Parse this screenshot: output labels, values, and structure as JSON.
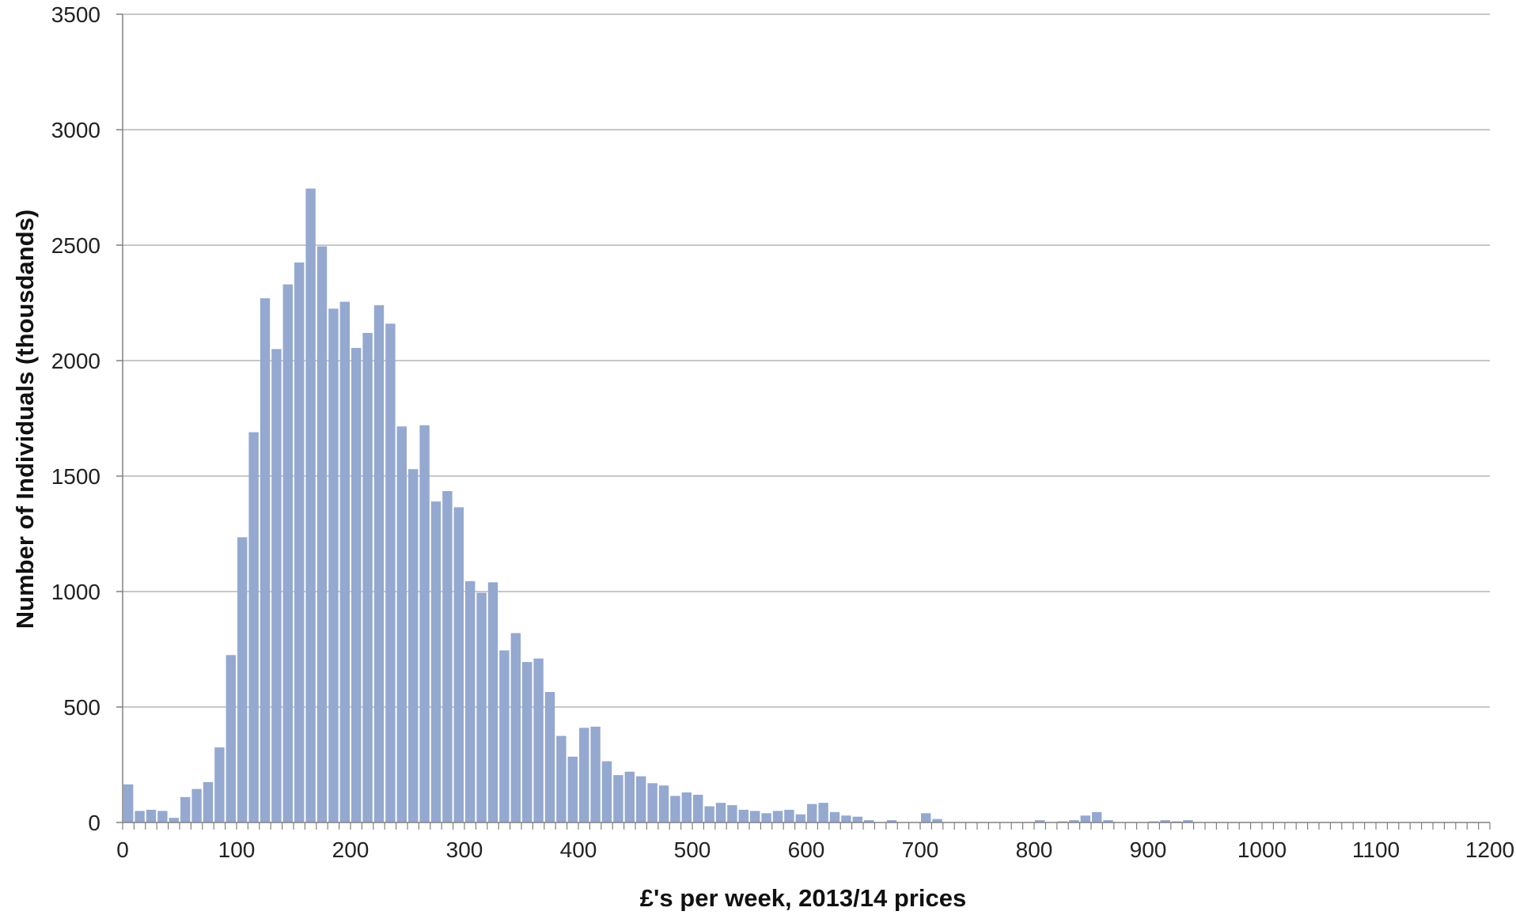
{
  "chart_data": {
    "type": "bar",
    "title": "",
    "xlabel": "£'s per week, 2013/14 prices",
    "ylabel": "Number of Individuals (thousdands)",
    "bin_width": 10,
    "xlim": [
      0,
      1200
    ],
    "ylim": [
      0,
      3500
    ],
    "x_ticks": [
      0,
      100,
      200,
      300,
      400,
      500,
      600,
      700,
      800,
      900,
      1000,
      1100,
      1200
    ],
    "y_ticks": [
      0,
      500,
      1000,
      1500,
      2000,
      2500,
      3000,
      3500
    ],
    "grid": true,
    "bar_color": "#94a8d0",
    "gridline_color": "#a6a6a6",
    "axis_color": "#808080",
    "x": [
      0,
      10,
      20,
      30,
      40,
      50,
      60,
      70,
      80,
      90,
      100,
      110,
      120,
      130,
      140,
      150,
      160,
      170,
      180,
      190,
      200,
      210,
      220,
      230,
      240,
      250,
      260,
      270,
      280,
      290,
      300,
      310,
      320,
      330,
      340,
      350,
      360,
      370,
      380,
      390,
      400,
      410,
      420,
      430,
      440,
      450,
      460,
      470,
      480,
      490,
      500,
      510,
      520,
      530,
      540,
      550,
      560,
      570,
      580,
      590,
      600,
      610,
      620,
      630,
      640,
      650,
      660,
      670,
      680,
      690,
      700,
      710,
      720,
      730,
      740,
      750,
      760,
      770,
      780,
      790,
      800,
      810,
      820,
      830,
      840,
      850,
      860,
      870,
      880,
      890,
      900,
      910,
      920,
      930,
      940,
      950,
      960,
      970,
      980,
      990,
      1000,
      1010,
      1020,
      1030,
      1040,
      1050,
      1060,
      1070,
      1080,
      1090,
      1100,
      1110,
      1120,
      1130,
      1140,
      1150,
      1160,
      1170,
      1180,
      1190
    ],
    "values": [
      165,
      50,
      55,
      50,
      20,
      110,
      145,
      175,
      325,
      725,
      1235,
      1690,
      2270,
      2050,
      2330,
      2425,
      2745,
      2495,
      2225,
      2255,
      2055,
      2120,
      2240,
      2160,
      1715,
      1530,
      1720,
      1390,
      1435,
      1365,
      1045,
      995,
      1040,
      745,
      820,
      695,
      710,
      565,
      375,
      285,
      410,
      415,
      265,
      205,
      220,
      200,
      170,
      160,
      115,
      130,
      120,
      70,
      85,
      75,
      55,
      50,
      40,
      50,
      55,
      35,
      80,
      85,
      45,
      30,
      25,
      10,
      0,
      10,
      0,
      0,
      40,
      15,
      0,
      0,
      0,
      0,
      0,
      0,
      0,
      0,
      10,
      0,
      5,
      10,
      30,
      45,
      10,
      0,
      0,
      0,
      5,
      10,
      5,
      10,
      0,
      0,
      0,
      0,
      0,
      0,
      0,
      0,
      0,
      0,
      0,
      0,
      0,
      0,
      0,
      0,
      0,
      0,
      0,
      0,
      0,
      0,
      0,
      0,
      0,
      0
    ]
  }
}
